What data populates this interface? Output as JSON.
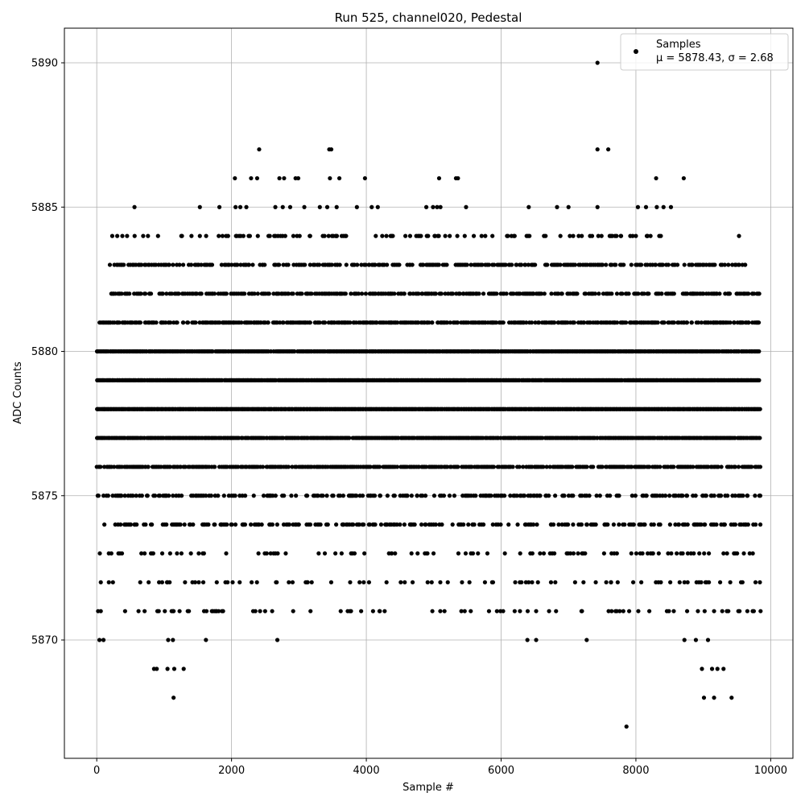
{
  "chart_data": {
    "type": "scatter",
    "title": "Run 525, channel020, Pedestal",
    "xlabel": "Sample #",
    "ylabel": "ADC Counts",
    "xlim": [
      -480,
      10330
    ],
    "ylim": [
      5865.9,
      5891.2
    ],
    "xticks": [
      0,
      2000,
      4000,
      6000,
      8000,
      10000
    ],
    "xtick_labels": [
      "0",
      "2000",
      "4000",
      "6000",
      "8000",
      "10000"
    ],
    "yticks": [
      5870,
      5875,
      5880,
      5885,
      5890
    ],
    "ytick_labels": [
      "5870",
      "5875",
      "5880",
      "5885",
      "5890"
    ],
    "grid": true,
    "legend_position": "top-right",
    "marker_color": "#000000",
    "series": [
      {
        "name": "Samples",
        "stats_label": "μ = 5878.43, σ = 2.68",
        "dense_bands": [
          {
            "y": 5873,
            "x_range": [
              0,
              9850
            ],
            "density": 0.15
          },
          {
            "y": 5874,
            "x_range": [
              0,
              9850
            ],
            "density": 0.35
          },
          {
            "y": 5875,
            "x_range": [
              0,
              9850
            ],
            "density": 0.3
          },
          {
            "y": 5876,
            "x_range": [
              0,
              9850
            ],
            "density": 0.65
          },
          {
            "y": 5877,
            "x_range": [
              0,
              9850
            ],
            "density": 0.9
          },
          {
            "y": 5878,
            "x_range": [
              0,
              9850
            ],
            "density": 1.0
          },
          {
            "y": 5879,
            "x_range": [
              0,
              9850
            ],
            "density": 0.95
          },
          {
            "y": 5880,
            "x_range": [
              0,
              9850
            ],
            "density": 0.9
          },
          {
            "y": 5881,
            "x_range": [
              0,
              9850
            ],
            "density": 0.6
          },
          {
            "y": 5882,
            "x_range": [
              200,
              9850
            ],
            "density": 0.5
          },
          {
            "y": 5883,
            "x_range": [
              200,
              9700
            ],
            "density": 0.45
          },
          {
            "y": 5884,
            "x_range": [
              220,
              8400
            ],
            "density": 0.12
          },
          {
            "y": 5872,
            "x_range": [
              50,
              9850
            ],
            "density": 0.08
          },
          {
            "y": 5871,
            "x_range": [
              50,
              9850
            ],
            "density": 0.08
          }
        ],
        "points": [
          [
            7430,
            5890
          ],
          [
            2410,
            5887
          ],
          [
            3450,
            5887
          ],
          [
            3480,
            5887
          ],
          [
            7430,
            5887
          ],
          [
            7590,
            5887
          ],
          [
            2050,
            5886
          ],
          [
            2290,
            5886
          ],
          [
            2380,
            5886
          ],
          [
            2710,
            5886
          ],
          [
            2780,
            5886
          ],
          [
            2950,
            5886
          ],
          [
            2990,
            5886
          ],
          [
            3460,
            5886
          ],
          [
            3600,
            5886
          ],
          [
            3980,
            5886
          ],
          [
            5080,
            5886
          ],
          [
            5330,
            5886
          ],
          [
            5360,
            5886
          ],
          [
            8300,
            5886
          ],
          [
            8710,
            5886
          ],
          [
            560,
            5885
          ],
          [
            1530,
            5885
          ],
          [
            1820,
            5885
          ],
          [
            2060,
            5885
          ],
          [
            2130,
            5885
          ],
          [
            2220,
            5885
          ],
          [
            2650,
            5885
          ],
          [
            2760,
            5885
          ],
          [
            2870,
            5885
          ],
          [
            3080,
            5885
          ],
          [
            3310,
            5885
          ],
          [
            3420,
            5885
          ],
          [
            3560,
            5885
          ],
          [
            3860,
            5885
          ],
          [
            4080,
            5885
          ],
          [
            4170,
            5885
          ],
          [
            4890,
            5885
          ],
          [
            4990,
            5885
          ],
          [
            5050,
            5885
          ],
          [
            5100,
            5885
          ],
          [
            5480,
            5885
          ],
          [
            6410,
            5885
          ],
          [
            6830,
            5885
          ],
          [
            7000,
            5885
          ],
          [
            7430,
            5885
          ],
          [
            8030,
            5885
          ],
          [
            8150,
            5885
          ],
          [
            8310,
            5885
          ],
          [
            8410,
            5885
          ],
          [
            8520,
            5885
          ],
          [
            230,
            5884
          ],
          [
            380,
            5884
          ],
          [
            450,
            5884
          ],
          [
            760,
            5884
          ],
          [
            1530,
            5884
          ],
          [
            1920,
            5884
          ],
          [
            2390,
            5884
          ],
          [
            2690,
            5884
          ],
          [
            3160,
            5884
          ],
          [
            3380,
            5884
          ],
          [
            3700,
            5884
          ],
          [
            4140,
            5884
          ],
          [
            4360,
            5884
          ],
          [
            4580,
            5884
          ],
          [
            4810,
            5884
          ],
          [
            5020,
            5884
          ],
          [
            5350,
            5884
          ],
          [
            5460,
            5884
          ],
          [
            6100,
            5884
          ],
          [
            6190,
            5884
          ],
          [
            6400,
            5884
          ],
          [
            6880,
            5884
          ],
          [
            7020,
            5884
          ],
          [
            7350,
            5884
          ],
          [
            7490,
            5884
          ],
          [
            7780,
            5884
          ],
          [
            8000,
            5884
          ],
          [
            8170,
            5884
          ],
          [
            8370,
            5884
          ],
          [
            9530,
            5884
          ],
          [
            9260,
            5883
          ],
          [
            9480,
            5883
          ],
          [
            9620,
            5883
          ],
          [
            8830,
            5883
          ],
          [
            8720,
            5883
          ],
          [
            9200,
            5882
          ],
          [
            9370,
            5882
          ],
          [
            9560,
            5882
          ],
          [
            9730,
            5882
          ],
          [
            9830,
            5882
          ],
          [
            8850,
            5882
          ],
          [
            9070,
            5881
          ],
          [
            9150,
            5881
          ],
          [
            9330,
            5881
          ],
          [
            9460,
            5881
          ],
          [
            9670,
            5881
          ],
          [
            9800,
            5881
          ],
          [
            8980,
            5880
          ],
          [
            9720,
            5880
          ],
          [
            60,
            5872
          ],
          [
            240,
            5872
          ],
          [
            770,
            5872
          ],
          [
            970,
            5872
          ],
          [
            1050,
            5872
          ],
          [
            1310,
            5872
          ],
          [
            1420,
            5872
          ],
          [
            1460,
            5872
          ],
          [
            2660,
            5872
          ],
          [
            2850,
            5872
          ],
          [
            3760,
            5872
          ],
          [
            3900,
            5872
          ],
          [
            4040,
            5872
          ],
          [
            4300,
            5872
          ],
          [
            4570,
            5872
          ],
          [
            4910,
            5872
          ],
          [
            4970,
            5872
          ],
          [
            5420,
            5872
          ],
          [
            5530,
            5872
          ],
          [
            5760,
            5872
          ],
          [
            5880,
            5872
          ],
          [
            6460,
            5872
          ],
          [
            6740,
            5872
          ],
          [
            7560,
            5872
          ],
          [
            7730,
            5872
          ],
          [
            7960,
            5872
          ],
          [
            8080,
            5872
          ],
          [
            8510,
            5872
          ],
          [
            8720,
            5872
          ],
          [
            8900,
            5872
          ],
          [
            9050,
            5872
          ],
          [
            9250,
            5872
          ],
          [
            9400,
            5872
          ],
          [
            9560,
            5872
          ],
          [
            9840,
            5872
          ],
          [
            20,
            5871
          ],
          [
            60,
            5871
          ],
          [
            620,
            5871
          ],
          [
            710,
            5871
          ],
          [
            920,
            5871
          ],
          [
            1010,
            5871
          ],
          [
            1130,
            5871
          ],
          [
            1350,
            5871
          ],
          [
            1780,
            5871
          ],
          [
            1810,
            5871
          ],
          [
            3620,
            5871
          ],
          [
            4200,
            5871
          ],
          [
            4980,
            5871
          ],
          [
            5160,
            5871
          ],
          [
            5410,
            5871
          ],
          [
            5460,
            5871
          ],
          [
            5820,
            5871
          ],
          [
            5990,
            5871
          ],
          [
            6030,
            5871
          ],
          [
            6280,
            5871
          ],
          [
            6520,
            5871
          ],
          [
            7200,
            5871
          ],
          [
            7640,
            5871
          ],
          [
            7760,
            5871
          ],
          [
            7900,
            5871
          ],
          [
            8460,
            5871
          ],
          [
            8490,
            5871
          ],
          [
            8760,
            5871
          ],
          [
            8920,
            5871
          ],
          [
            9020,
            5871
          ],
          [
            9160,
            5871
          ],
          [
            9350,
            5871
          ],
          [
            9520,
            5871
          ],
          [
            9850,
            5871
          ],
          [
            40,
            5870
          ],
          [
            100,
            5870
          ],
          [
            1060,
            5870
          ],
          [
            1130,
            5870
          ],
          [
            1620,
            5870
          ],
          [
            2680,
            5870
          ],
          [
            6390,
            5870
          ],
          [
            6520,
            5870
          ],
          [
            7270,
            5870
          ],
          [
            8720,
            5870
          ],
          [
            8890,
            5870
          ],
          [
            9070,
            5870
          ],
          [
            850,
            5869
          ],
          [
            890,
            5869
          ],
          [
            1050,
            5869
          ],
          [
            1150,
            5869
          ],
          [
            1290,
            5869
          ],
          [
            8980,
            5869
          ],
          [
            9130,
            5869
          ],
          [
            9210,
            5869
          ],
          [
            9300,
            5869
          ],
          [
            1140,
            5868
          ],
          [
            9010,
            5868
          ],
          [
            9160,
            5868
          ],
          [
            9420,
            5868
          ],
          [
            7860,
            5867
          ]
        ]
      }
    ]
  }
}
